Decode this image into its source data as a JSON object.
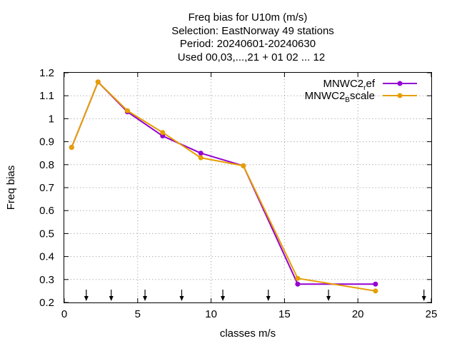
{
  "chart_data": {
    "type": "line",
    "title_lines": [
      "Freq bias  for U10m (m/s)",
      "Selection: EastNorway     49 stations",
      "Period: 20240601-20240630",
      "Used 00,03,...,21 + 01 02 ... 12"
    ],
    "xlabel": "classes m/s",
    "ylabel": "Freq bias",
    "xlim": [
      0,
      25
    ],
    "ylim": [
      0.2,
      1.2
    ],
    "x_ticks": [
      "0",
      "5",
      "10",
      "15",
      "20",
      "25"
    ],
    "y_ticks": [
      "0.2",
      "0.3",
      "0.4",
      "0.5",
      "0.6",
      "0.7",
      "0.8",
      "0.9",
      "1",
      "1.1",
      "1.2"
    ],
    "grid": true,
    "legend_position": "top-right",
    "series": [
      {
        "name": "MNWC2_ref",
        "legend_main": "MNWC2",
        "legend_sub": "r",
        "legend_rest": "ef",
        "color": "#9400d3",
        "x": [
          0.5,
          2.3,
          4.3,
          6.7,
          9.3,
          12.2,
          15.9,
          21.2
        ],
        "values": [
          0.875,
          1.16,
          1.03,
          0.925,
          0.85,
          0.795,
          0.28,
          0.28
        ]
      },
      {
        "name": "MNWC2_Bscale",
        "legend_main": "MNWC2",
        "legend_sub": "B",
        "legend_rest": "scale",
        "color": "#e69f00",
        "x": [
          0.5,
          2.3,
          4.3,
          6.7,
          9.3,
          12.2,
          15.9,
          21.2
        ],
        "values": [
          0.875,
          1.16,
          1.035,
          0.94,
          0.83,
          0.795,
          0.305,
          0.25
        ]
      }
    ],
    "arrow_markers_x": [
      1.5,
      3.2,
      5.5,
      8.0,
      10.8,
      13.9,
      18.0,
      24.5
    ]
  }
}
